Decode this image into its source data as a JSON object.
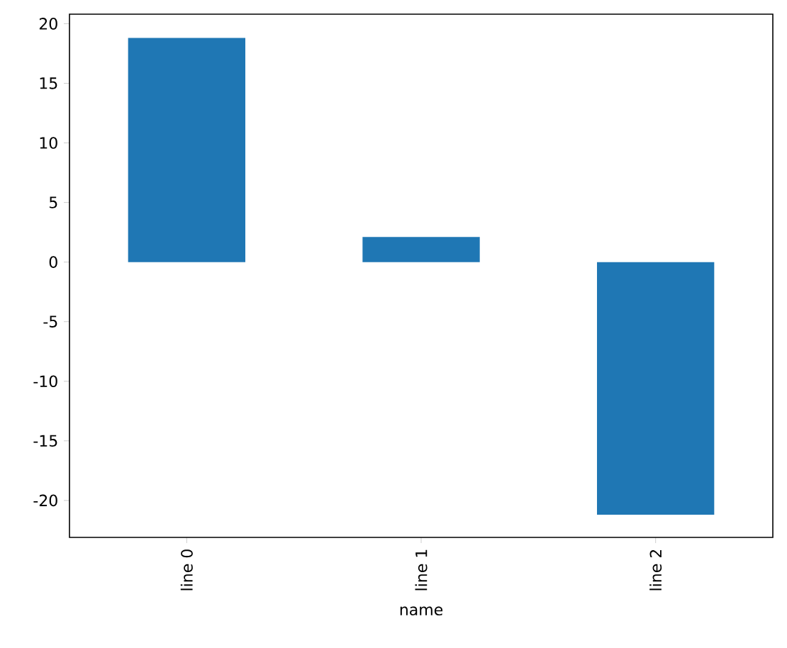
{
  "chart_data": {
    "type": "bar",
    "xlabel": "name",
    "categories": [
      "line 0",
      "line 1",
      "line 2"
    ],
    "values": [
      18.8,
      2.1,
      -21.2
    ],
    "color": "#1f77b4",
    "ylim": [
      -23.1,
      20.8
    ],
    "yticks": [
      -20,
      -15,
      -10,
      -5,
      0,
      5,
      10,
      15,
      20
    ],
    "grid": false
  }
}
